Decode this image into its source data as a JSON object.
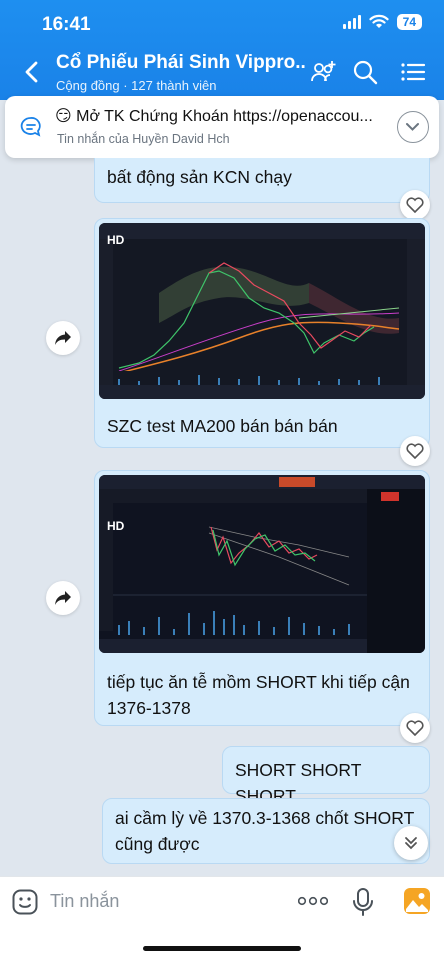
{
  "status": {
    "time": "16:41",
    "battery": "74"
  },
  "header": {
    "title": "Cổ Phiếu Phái Sinh Vippro...",
    "subtitle": "Cộng đồng · 127 thành viên"
  },
  "pinned": {
    "text": "😏 Mở TK Chứng Khoán https://openaccou...",
    "sender": "Tin nhắn của Huyền David Hch"
  },
  "messages": [
    {
      "text": "bất động sản KCN chạy"
    },
    {
      "caption": "SZC test MA200 bán bán bán",
      "image_label": "HD"
    },
    {
      "caption": "tiếp tục ăn tễ mồm SHORT khi tiếp cận 1376-1378",
      "image_label": "HD"
    },
    {
      "text": "SHORT SHORT SHORT"
    },
    {
      "text": "ai cầm lỳ về 1370.3-1368 chốt SHORT cũng được"
    }
  ],
  "input": {
    "placeholder": "Tin nhắn"
  },
  "colors": {
    "header": "#1a82e8",
    "bubble": "#d6ecfc",
    "chart_bg": "#141823"
  }
}
